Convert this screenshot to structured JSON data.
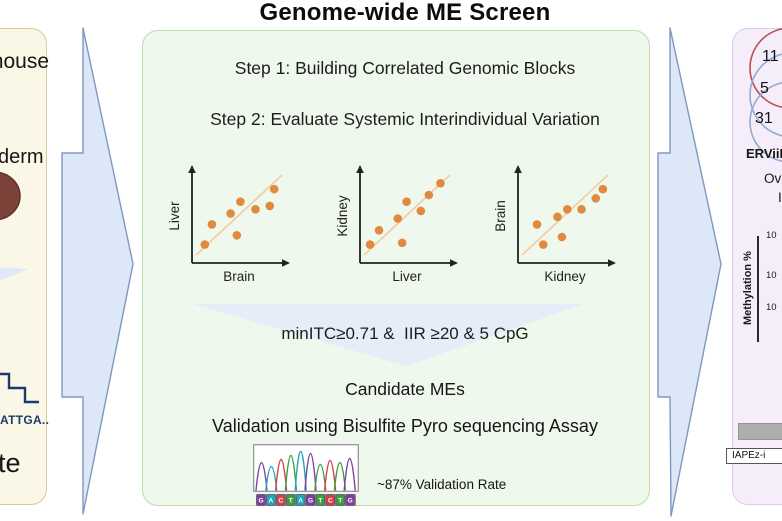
{
  "title": "Genome-wide ME Screen",
  "left_panel": {
    "species_label": "mouse",
    "tissue_label": "derm",
    "sequence_label": "ATTGA..",
    "fragment_label": "te"
  },
  "main_panel": {
    "step1": "Step 1: Building Correlated Genomic Blocks",
    "step2": "Step 2: Evaluate Systemic Interindividual Variation",
    "filter_criteria": "minITC≥0.71 &  IIR ≥20 & 5 CpG",
    "candidates_label": "Candidate MEs",
    "validation_label": "Validation using Bisulfite Pyro sequencing Assay",
    "validation_rate": "~87% Validation Rate",
    "scatter_plots": [
      {
        "xlabel": "Brain",
        "ylabel": "Liver",
        "points": [
          [
            0.11,
            0.84
          ],
          [
            0.19,
            0.6
          ],
          [
            0.4,
            0.47
          ],
          [
            0.51,
            0.33
          ],
          [
            0.47,
            0.73
          ],
          [
            0.68,
            0.42
          ],
          [
            0.84,
            0.38
          ],
          [
            0.89,
            0.18
          ]
        ]
      },
      {
        "xlabel": "Liver",
        "ylabel": "Kidney",
        "points": [
          [
            0.08,
            0.84
          ],
          [
            0.18,
            0.67
          ],
          [
            0.39,
            0.53
          ],
          [
            0.44,
            0.82
          ],
          [
            0.49,
            0.33
          ],
          [
            0.65,
            0.44
          ],
          [
            0.74,
            0.25
          ],
          [
            0.87,
            0.11
          ]
        ]
      },
      {
        "xlabel": "Kidney",
        "ylabel": "Brain",
        "points": [
          [
            0.18,
            0.6
          ],
          [
            0.25,
            0.84
          ],
          [
            0.41,
            0.51
          ],
          [
            0.52,
            0.42
          ],
          [
            0.46,
            0.75
          ],
          [
            0.68,
            0.42
          ],
          [
            0.84,
            0.29
          ],
          [
            0.92,
            0.18
          ]
        ]
      }
    ],
    "chromatogram": {
      "sequence": [
        "G",
        "A",
        "C",
        "T",
        "A",
        "G",
        "T",
        "C",
        "T",
        "G"
      ],
      "peak_heights": [
        28,
        24,
        31,
        35,
        39,
        37,
        26,
        30,
        28,
        32
      ],
      "base_colors": {
        "G": "#8040a0",
        "A": "#1fa8b8",
        "C": "#d9404a",
        "T": "#3da03d"
      }
    }
  },
  "right_panel": {
    "venn_counts": [
      "11",
      "5",
      "31"
    ],
    "element_label": "ERViiI",
    "overlap_line1": "Ov",
    "overlap_line2": "I",
    "chart_ylabel": "Methylation %",
    "chart_ticks": [
      "10",
      "10",
      "10"
    ],
    "track_label": "IAPEz-i"
  },
  "colors": {
    "arrow_fill": "#dce8f7",
    "arrow_stroke": "#7e97c3",
    "dot": "#df8a3e",
    "trend": "#f3c79b",
    "funnel": "#e6edf8",
    "navy": "#1e3a6e",
    "venn_red": "#b5544d",
    "venn_blue": "#93aacf"
  }
}
